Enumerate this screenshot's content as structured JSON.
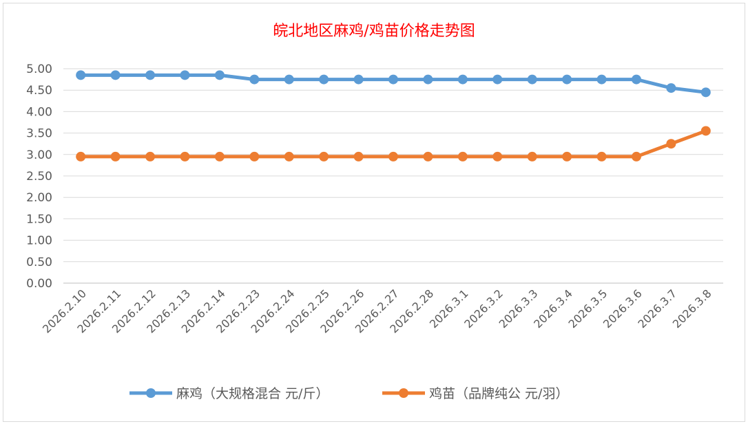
{
  "chart_data": {
    "type": "line",
    "title": "皖北地区麻鸡/鸡苗价格走势图",
    "categories": [
      "2026.2.10",
      "2026.2.11",
      "2026.2.12",
      "2026.2.13",
      "2026.2.14",
      "2026.2.23",
      "2026.2.24",
      "2026.2.25",
      "2026.2.26",
      "2026.2.27",
      "2026.2.28",
      "2026.3.1",
      "2026.3.2",
      "2026.3.3",
      "2026.3.4",
      "2026.3.5",
      "2026.3.6",
      "2026.3.7",
      "2026.3.8"
    ],
    "series": [
      {
        "name": "麻鸡（大规格混合 元/斤）",
        "color": "#5b9bd5",
        "values": [
          4.85,
          4.85,
          4.85,
          4.85,
          4.85,
          4.75,
          4.75,
          4.75,
          4.75,
          4.75,
          4.75,
          4.75,
          4.75,
          4.75,
          4.75,
          4.75,
          4.75,
          4.55,
          4.45
        ]
      },
      {
        "name": "鸡苗（品牌纯公 元/羽）",
        "color": "#ed7d31",
        "values": [
          2.95,
          2.95,
          2.95,
          2.95,
          2.95,
          2.95,
          2.95,
          2.95,
          2.95,
          2.95,
          2.95,
          2.95,
          2.95,
          2.95,
          2.95,
          2.95,
          2.95,
          3.25,
          3.55
        ]
      }
    ],
    "yticks": [
      "0.00",
      "0.50",
      "1.00",
      "1.50",
      "2.00",
      "2.50",
      "3.00",
      "3.50",
      "4.00",
      "4.50",
      "5.00"
    ],
    "ylim": [
      0,
      5
    ],
    "grid": true,
    "legend": "bottom",
    "xlabel": "",
    "ylabel": ""
  }
}
